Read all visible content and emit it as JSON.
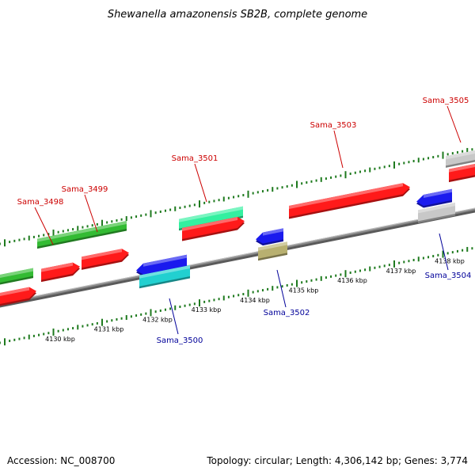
{
  "title": "Shewanella amazonensis SB2B, complete genome",
  "footer": {
    "accession": "Accession: NC_008700",
    "summary": "Topology: circular; Length: 4,306,142 bp; Genes: 3,774"
  },
  "colors": {
    "forward_label": "#cc0000",
    "reverse_label": "#000099",
    "tick": "#1e7a1e",
    "backbone": "#8a8a8a",
    "red": "#ff1a1a",
    "green": "#33bb33",
    "aqua": "#33f0a0",
    "blue": "#1a1aee",
    "cyan": "#22d0d0",
    "olive": "#b8b070",
    "gray": "#c8c8c8"
  },
  "ticks": [
    "4130 kbp",
    "4131 kbp",
    "4132 kbp",
    "4133 kbp",
    "4134 kbp",
    "4135 kbp",
    "4136 kbp",
    "4137 kbp",
    "4138 kbp"
  ],
  "gene_labels": [
    "Sama_3498",
    "Sama_3499",
    "Sama_3500",
    "Sama_3501",
    "Sama_3502",
    "Sama_3503",
    "Sama_3504",
    "Sama_3505"
  ]
}
